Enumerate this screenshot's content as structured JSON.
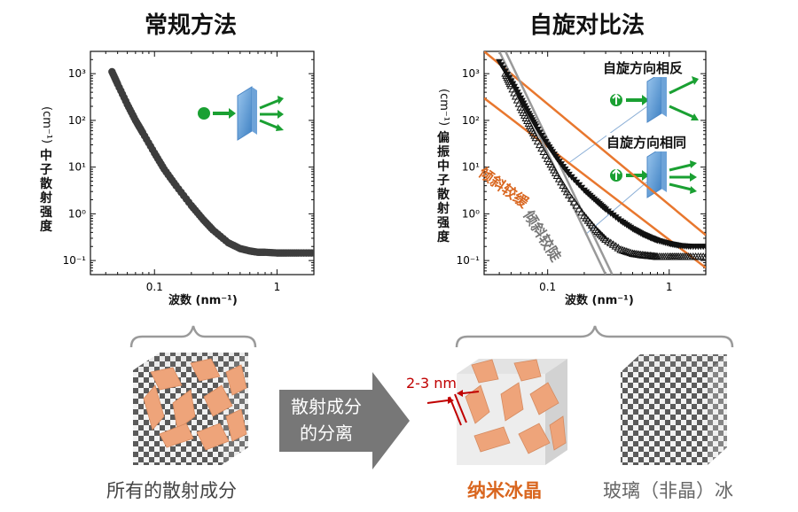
{
  "titles": {
    "left": "常规方法",
    "right": "自旋对比法"
  },
  "left_plot": {
    "ylabel_unit": "(cm⁻¹)",
    "ylabel": "中子散射强度",
    "xlabel": "波数 (nm⁻¹)"
  },
  "right_plot": {
    "ylabel_unit": "(cm⁻¹)",
    "ylabel": "偏振中子散射强度",
    "xlabel": "波数 (nm⁻¹)",
    "legend_antiparallel": "自旋方向相反",
    "legend_parallel": "自旋方向相同",
    "slope_gentle": "倾斜较缓",
    "slope_steep": "倾斜较陡"
  },
  "bottom": {
    "arrow_line1": "散射成分",
    "arrow_line2": "的分离",
    "caption_all": "所有的散射成分",
    "caption_nano": "纳米冰晶",
    "caption_glass": "玻璃（非晶）冰",
    "size_label": "2-3 nm"
  },
  "colors": {
    "orange": "#e8772e",
    "caption_orange": "#d9661f",
    "green": "#1aa032",
    "red": "#c00000",
    "gray": "#888888"
  },
  "chart_data": [
    {
      "type": "scatter",
      "title": "常规方法",
      "xlabel": "波数 (nm⁻¹)",
      "ylabel": "中子散射强度 (cm⁻¹)",
      "xscale": "log",
      "yscale": "log",
      "xlim": [
        0.03,
        2
      ],
      "ylim": [
        0.05,
        3000
      ],
      "x_ticks": [
        "0.1",
        "1"
      ],
      "y_ticks": [
        "10⁻¹",
        "10⁰",
        "10¹",
        "10²",
        "10³"
      ],
      "series": [
        {
          "marker": "circle",
          "color": "#3d3d3d",
          "x": [
            0.045,
            0.05,
            0.06,
            0.07,
            0.08,
            0.1,
            0.12,
            0.15,
            0.2,
            0.25,
            0.3,
            0.4,
            0.5,
            0.6,
            0.7,
            0.8,
            1.0,
            1.2,
            1.5,
            2.0
          ],
          "y": [
            1100,
            600,
            220,
            100,
            55,
            20,
            9,
            4,
            1.5,
            0.75,
            0.45,
            0.24,
            0.18,
            0.16,
            0.15,
            0.15,
            0.145,
            0.145,
            0.145,
            0.145
          ]
        }
      ]
    },
    {
      "type": "scatter",
      "title": "自旋对比法",
      "xlabel": "波数 (nm⁻¹)",
      "ylabel": "偏振中子散射强度 (cm⁻¹)",
      "xscale": "log",
      "yscale": "log",
      "xlim": [
        0.03,
        2
      ],
      "ylim": [
        0.05,
        3000
      ],
      "x_ticks": [
        "0.1",
        "1"
      ],
      "y_ticks": [
        "10⁻¹",
        "10⁰",
        "10¹",
        "10²",
        "10³"
      ],
      "series": [
        {
          "label": "自旋方向相反",
          "marker": "triangle-down-filled",
          "color": "#111111",
          "x": [
            0.04,
            0.05,
            0.06,
            0.07,
            0.08,
            0.1,
            0.12,
            0.15,
            0.2,
            0.25,
            0.3,
            0.4,
            0.5,
            0.6,
            0.7,
            0.8,
            1.0,
            1.2,
            1.5,
            2.0
          ],
          "y": [
            1800,
            700,
            300,
            140,
            75,
            30,
            15,
            7,
            3.2,
            1.9,
            1.25,
            0.7,
            0.48,
            0.37,
            0.31,
            0.27,
            0.23,
            0.21,
            0.2,
            0.2
          ]
        },
        {
          "label": "自旋方向相同",
          "marker": "triangle-up-open",
          "color": "#111111",
          "x": [
            0.045,
            0.05,
            0.06,
            0.07,
            0.08,
            0.1,
            0.12,
            0.15,
            0.2,
            0.25,
            0.3,
            0.4,
            0.5,
            0.6,
            0.7,
            0.8,
            1.0,
            1.2,
            1.5,
            2.0
          ],
          "y": [
            1000,
            550,
            190,
            85,
            42,
            15,
            6.5,
            2.5,
            0.9,
            0.45,
            0.28,
            0.17,
            0.14,
            0.13,
            0.125,
            0.12,
            0.12,
            0.12,
            0.12,
            0.12
          ]
        }
      ],
      "guide_lines": [
        {
          "label": "倾斜较缓",
          "color": "#e8772e",
          "points": [
            [
              0.03,
              300
            ],
            [
              2.0,
              0.07
            ]
          ]
        },
        {
          "label": "倾斜较缓",
          "color": "#e8772e",
          "points": [
            [
              0.03,
              3000
            ],
            [
              2.0,
              0.35
            ]
          ]
        },
        {
          "label": "倾斜较陡",
          "color": "#999999",
          "points": [
            [
              0.04,
              3000
            ],
            [
              0.3,
              0.05
            ]
          ]
        },
        {
          "label": "倾斜较陡",
          "color": "#999999",
          "points": [
            [
              0.045,
              3000
            ],
            [
              0.34,
              0.05
            ]
          ]
        }
      ]
    }
  ]
}
